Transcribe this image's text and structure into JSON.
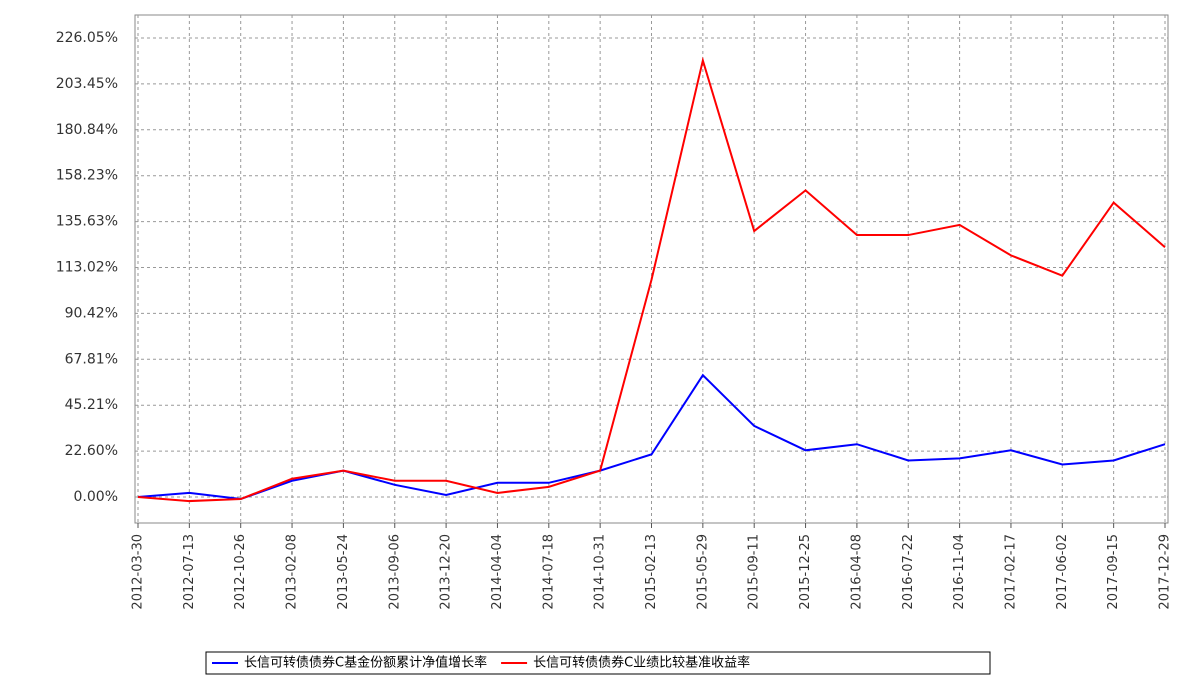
{
  "chart_data": {
    "type": "line",
    "x": [
      "2012-03-30",
      "2012-07-13",
      "2012-10-26",
      "2013-02-08",
      "2013-05-24",
      "2013-09-06",
      "2013-12-20",
      "2014-04-04",
      "2014-07-18",
      "2014-10-31",
      "2015-02-13",
      "2015-05-29",
      "2015-09-11",
      "2015-12-25",
      "2016-04-08",
      "2016-07-22",
      "2016-11-04",
      "2017-02-17",
      "2017-06-02",
      "2017-09-15",
      "2017-12-29"
    ],
    "series": [
      {
        "name": "长信可转债债券C基金份额累计净值增长率",
        "color": "#0000ff",
        "values": [
          0,
          2,
          -1,
          8,
          13,
          6,
          1,
          7,
          7,
          13,
          21,
          60,
          35,
          23,
          26,
          18,
          19,
          23,
          16,
          18,
          26
        ]
      },
      {
        "name": "长信可转债债券C业绩比较基准收益率",
        "color": "#ff0000",
        "values": [
          0,
          -2,
          -1,
          9,
          13,
          8,
          8,
          2,
          5,
          13,
          107,
          215,
          131,
          151,
          129,
          129,
          134,
          119,
          109,
          145,
          123
        ]
      }
    ],
    "ylim": [
      0,
      226.05
    ],
    "yticks": [
      {
        "value": 0,
        "label": "0.00%"
      },
      {
        "value": 22.6,
        "label": "22.60%"
      },
      {
        "value": 45.21,
        "label": "45.21%"
      },
      {
        "value": 67.81,
        "label": "67.81%"
      },
      {
        "value": 90.42,
        "label": "90.42%"
      },
      {
        "value": 113.02,
        "label": "113.02%"
      },
      {
        "value": 135.63,
        "label": "135.63%"
      },
      {
        "value": 158.23,
        "label": "158.23%"
      },
      {
        "value": 180.84,
        "label": "180.84%"
      },
      {
        "value": 203.45,
        "label": "203.45%"
      },
      {
        "value": 226.05,
        "label": "226.05%"
      }
    ],
    "grid": true,
    "legend": "bottom"
  }
}
